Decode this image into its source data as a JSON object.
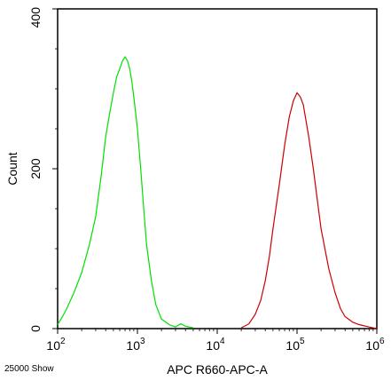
{
  "chart_data": {
    "type": "line",
    "xlabel": "APC R660-APC-A",
    "ylabel": "Count",
    "x_scale": "log",
    "xlim": [
      100,
      1000000
    ],
    "ylim": [
      0,
      400
    ],
    "x_ticks": [
      {
        "value": 100,
        "base": "10",
        "exp": "2"
      },
      {
        "value": 1000,
        "base": "10",
        "exp": "3"
      },
      {
        "value": 10000,
        "base": "10",
        "exp": "4"
      },
      {
        "value": 100000,
        "base": "10",
        "exp": "5"
      },
      {
        "value": 1000000,
        "base": "10",
        "exp": "6"
      }
    ],
    "y_ticks": [
      {
        "value": 0,
        "label": "0"
      },
      {
        "value": 200,
        "label": "200"
      },
      {
        "value": 400,
        "label": "400"
      }
    ],
    "grid": false,
    "series": [
      {
        "color": "#00e000",
        "x": [
          100,
          115,
          130,
          160,
          200,
          250,
          300,
          350,
          400,
          450,
          500,
          550,
          600,
          650,
          700,
          750,
          800,
          850,
          900,
          1000,
          1100,
          1200,
          1300,
          1500,
          1700,
          2000,
          2500,
          3000,
          3500,
          4000,
          5000
        ],
        "y": [
          5,
          15,
          25,
          45,
          70,
          105,
          140,
          190,
          240,
          270,
          295,
          315,
          325,
          335,
          340,
          335,
          325,
          310,
          290,
          250,
          200,
          150,
          105,
          60,
          30,
          12,
          5,
          2,
          6,
          3,
          1
        ]
      },
      {
        "color": "#cc0000",
        "x": [
          20000,
          25000,
          30000,
          35000,
          40000,
          45000,
          50000,
          60000,
          70000,
          80000,
          90000,
          100000,
          110000,
          120000,
          140000,
          160000,
          180000,
          200000,
          250000,
          300000,
          350000,
          400000,
          500000,
          600000,
          800000,
          1000000
        ],
        "y": [
          1,
          6,
          18,
          35,
          60,
          90,
          125,
          180,
          230,
          265,
          285,
          295,
          290,
          280,
          240,
          200,
          160,
          125,
          75,
          45,
          25,
          15,
          8,
          5,
          2,
          0
        ]
      }
    ],
    "annotations": [
      {
        "text": "25000 Show",
        "position": "bottom-left"
      }
    ]
  }
}
